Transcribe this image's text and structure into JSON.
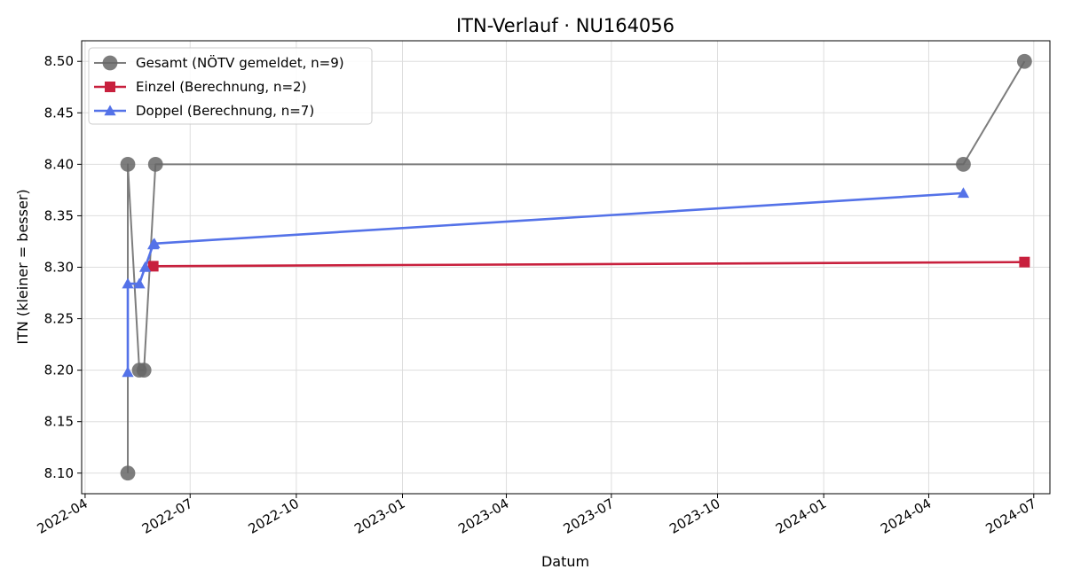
{
  "chart_data": {
    "type": "line",
    "title": "ITN-Verlauf · NU164056",
    "xlabel": "Datum",
    "ylabel": "ITN  (kleiner = besser)",
    "x_axis": {
      "kind": "date",
      "range": [
        "2022-03-29",
        "2024-07-15"
      ],
      "ticks": [
        "2022-04-01",
        "2022-07-01",
        "2022-10-01",
        "2023-01-01",
        "2023-04-01",
        "2023-07-01",
        "2023-10-01",
        "2024-01-01",
        "2024-04-01",
        "2024-07-01"
      ],
      "tick_labels": [
        "2022-04",
        "2022-07",
        "2022-10",
        "2023-01",
        "2023-04",
        "2023-07",
        "2023-10",
        "2024-01",
        "2024-04",
        "2024-07"
      ]
    },
    "y_axis": {
      "range": [
        8.08,
        8.52
      ],
      "ticks": [
        8.1,
        8.15,
        8.2,
        8.25,
        8.3,
        8.35,
        8.4,
        8.45,
        8.5
      ],
      "tick_labels": [
        "8.10",
        "8.15",
        "8.20",
        "8.25",
        "8.30",
        "8.35",
        "8.40",
        "8.45",
        "8.50"
      ]
    },
    "grid": true,
    "legend_position": "top-left",
    "series": [
      {
        "name": "Gesamt (NÖTV gemeldet, n=9)",
        "color": "#666666",
        "marker": "circle",
        "points": [
          {
            "x": "2022-05-08",
            "y": 8.1
          },
          {
            "x": "2022-05-08",
            "y": 8.4
          },
          {
            "x": "2022-05-18",
            "y": 8.2
          },
          {
            "x": "2022-05-22",
            "y": 8.2
          },
          {
            "x": "2022-06-01",
            "y": 8.4
          },
          {
            "x": "2024-05-01",
            "y": 8.4
          },
          {
            "x": "2024-06-23",
            "y": 8.5
          }
        ]
      },
      {
        "name": "Einzel (Berechnung, n=2)",
        "color": "#c8203d",
        "marker": "square",
        "points": [
          {
            "x": "2022-05-30",
            "y": 8.301
          },
          {
            "x": "2024-06-23",
            "y": 8.305
          }
        ]
      },
      {
        "name": "Doppel (Berechnung, n=7)",
        "color": "#5472e8",
        "marker": "triangle",
        "points": [
          {
            "x": "2022-05-08",
            "y": 8.198
          },
          {
            "x": "2022-05-08",
            "y": 8.284
          },
          {
            "x": "2022-05-18",
            "y": 8.284
          },
          {
            "x": "2022-05-23",
            "y": 8.3
          },
          {
            "x": "2022-05-30",
            "y": 8.322
          },
          {
            "x": "2022-05-31",
            "y": 8.323
          },
          {
            "x": "2024-05-01",
            "y": 8.372
          }
        ]
      }
    ]
  }
}
